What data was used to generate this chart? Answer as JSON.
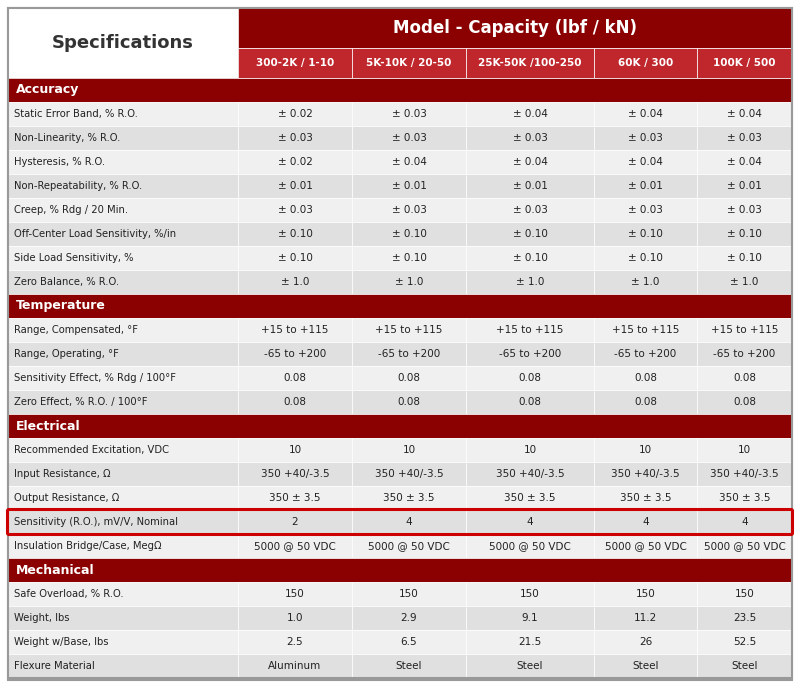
{
  "title_row": "Model - Capacity (lbf / kN)",
  "col_headers": [
    "300-2K / 1-10",
    "5K-10K / 20-50",
    "25K-50K /100-250",
    "60K / 300",
    "100K / 500"
  ],
  "spec_col_header": "Specifications",
  "sections": [
    {
      "name": "Accuracy",
      "rows": [
        [
          "Static Error Band, % R.O.",
          "± 0.02",
          "± 0.03",
          "± 0.04",
          "± 0.04",
          "± 0.04"
        ],
        [
          "Non-Linearity, % R.O.",
          "± 0.03",
          "± 0.03",
          "± 0.03",
          "± 0.03",
          "± 0.03"
        ],
        [
          "Hysteresis, % R.O.",
          "± 0.02",
          "± 0.04",
          "± 0.04",
          "± 0.04",
          "± 0.04"
        ],
        [
          "Non-Repeatability, % R.O.",
          "± 0.01",
          "± 0.01",
          "± 0.01",
          "± 0.01",
          "± 0.01"
        ],
        [
          "Creep, % Rdg / 20 Min.",
          "± 0.03",
          "± 0.03",
          "± 0.03",
          "± 0.03",
          "± 0.03"
        ],
        [
          "Off-Center Load Sensitivity, %/in",
          "± 0.10",
          "± 0.10",
          "± 0.10",
          "± 0.10",
          "± 0.10"
        ],
        [
          "Side Load Sensitivity, %",
          "± 0.10",
          "± 0.10",
          "± 0.10",
          "± 0.10",
          "± 0.10"
        ],
        [
          "Zero Balance, % R.O.",
          "± 1.0",
          "± 1.0",
          "± 1.0",
          "± 1.0",
          "± 1.0"
        ]
      ]
    },
    {
      "name": "Temperature",
      "rows": [
        [
          "Range, Compensated, °F",
          "+15 to +115",
          "+15 to +115",
          "+15 to +115",
          "+15 to +115",
          "+15 to +115"
        ],
        [
          "Range, Operating, °F",
          "-65 to +200",
          "-65 to +200",
          "-65 to +200",
          "-65 to +200",
          "-65 to +200"
        ],
        [
          "Sensitivity Effect, % Rdg / 100°F",
          "0.08",
          "0.08",
          "0.08",
          "0.08",
          "0.08"
        ],
        [
          "Zero Effect, % R.O. / 100°F",
          "0.08",
          "0.08",
          "0.08",
          "0.08",
          "0.08"
        ]
      ]
    },
    {
      "name": "Electrical",
      "rows": [
        [
          "Recommended Excitation, VDC",
          "10",
          "10",
          "10",
          "10",
          "10"
        ],
        [
          "Input Resistance, Ω",
          "350 +40/-3.5",
          "350 +40/-3.5",
          "350 +40/-3.5",
          "350 +40/-3.5",
          "350 +40/-3.5"
        ],
        [
          "Output Resistance, Ω",
          "350 ± 3.5",
          "350 ± 3.5",
          "350 ± 3.5",
          "350 ± 3.5",
          "350 ± 3.5"
        ],
        [
          "Sensitivity (R.O.), mV/V, Nominal",
          "2",
          "4",
          "4",
          "4",
          "4"
        ],
        [
          "Insulation Bridge/Case, MegΩ",
          "5000 @ 50 VDC",
          "5000 @ 50 VDC",
          "5000 @ 50 VDC",
          "5000 @ 50 VDC",
          "5000 @ 50 VDC"
        ]
      ]
    },
    {
      "name": "Mechanical",
      "rows": [
        [
          "Safe Overload, % R.O.",
          "150",
          "150",
          "150",
          "150",
          "150"
        ],
        [
          "Weight, lbs",
          "1.0",
          "2.9",
          "9.1",
          "11.2",
          "23.5"
        ],
        [
          "Weight w/Base, lbs",
          "2.5",
          "6.5",
          "21.5",
          "26",
          "52.5"
        ],
        [
          "Flexure Material",
          "Aluminum",
          "Steel",
          "Steel",
          "Steel",
          "Steel"
        ]
      ]
    }
  ],
  "highlighted_row": "Sensitivity (R.O.), mV/V, Nominal",
  "dark_red": "#8B0000",
  "bright_red": "#C0272D",
  "section_bg": "#8B0000",
  "section_text": "#ffffff",
  "row_bg_light": "#f0f0f0",
  "row_bg_mid": "#e0e0e0",
  "row_text": "#222222",
  "highlight_border": "#CC0000",
  "header_text": "#ffffff",
  "spec_bg": "#ffffff",
  "spec_text": "#333333",
  "border_color": "#999999"
}
